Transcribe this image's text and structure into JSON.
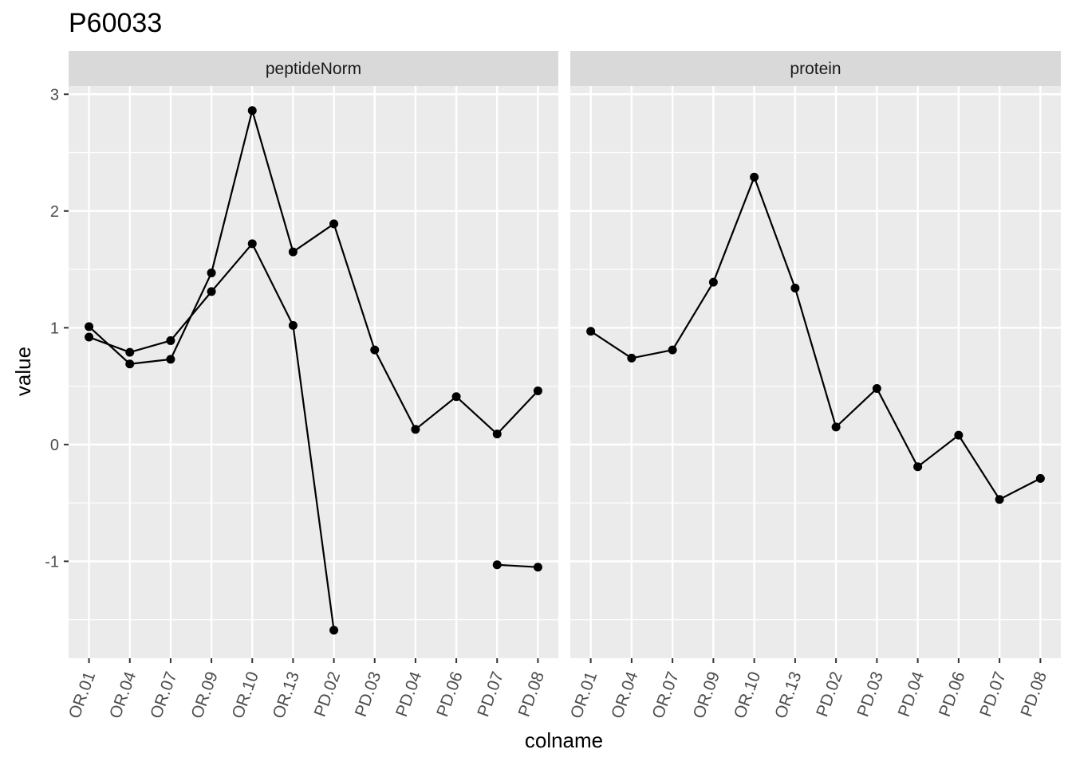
{
  "chart_data": {
    "type": "line",
    "title": "P60033",
    "xlabel": "colname",
    "ylabel": "value",
    "ylim": [
      -1.83,
      3.07
    ],
    "y_ticks": [
      -1,
      0,
      1,
      2,
      3
    ],
    "y_tick_labels": [
      "-1",
      "0",
      "1",
      "2",
      "3"
    ],
    "categories": [
      "OR.01",
      "OR.04",
      "OR.07",
      "OR.09",
      "OR.10",
      "OR.13",
      "PD.02",
      "PD.03",
      "PD.04",
      "PD.06",
      "PD.07",
      "PD.08"
    ],
    "grid": true,
    "colors": {
      "panel_background": "#ebebeb",
      "strip_background": "#d9d9d9",
      "grid": "#ffffff",
      "line": "#000000",
      "tick_text": "#4d4d4d"
    },
    "facets": [
      {
        "name": "peptideNorm",
        "series": [
          {
            "values": [
              1.01,
              0.69,
              0.73,
              1.47,
              2.86,
              1.65,
              1.89,
              0.81,
              0.13,
              0.41,
              0.09,
              0.46
            ]
          },
          {
            "values": [
              0.92,
              0.79,
              0.89,
              1.31,
              1.72,
              1.02,
              -1.59,
              null,
              null,
              null,
              -1.03,
              -1.05
            ]
          }
        ]
      },
      {
        "name": "protein",
        "series": [
          {
            "values": [
              0.97,
              0.74,
              0.81,
              1.39,
              2.29,
              1.34,
              0.15,
              0.48,
              -0.19,
              0.08,
              -0.47,
              -0.29
            ]
          }
        ]
      }
    ]
  }
}
